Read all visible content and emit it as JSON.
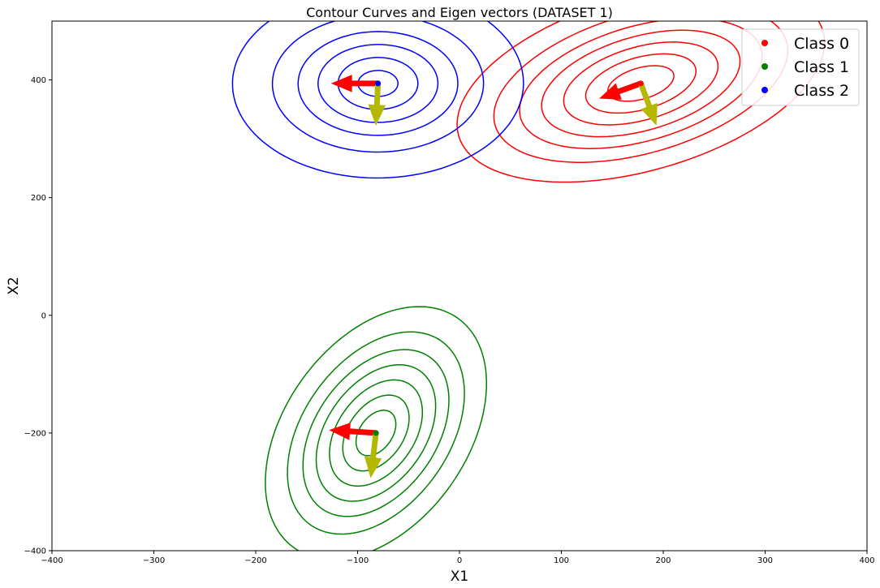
{
  "chart_data": {
    "type": "scatter",
    "title": "Contour Curves and Eigen vectors (DATASET 1)",
    "xlabel": "X1",
    "ylabel": "X2",
    "xlim": [
      -400,
      400
    ],
    "ylim": [
      -400,
      500
    ],
    "xticks": [
      -400,
      -300,
      -200,
      -100,
      0,
      100,
      200,
      300,
      400
    ],
    "yticks": [
      -400,
      -200,
      0,
      200,
      400
    ],
    "legend": {
      "placement": "top-right"
    },
    "eigen_colors": [
      "#ff0000",
      "#b5b800"
    ],
    "series": [
      {
        "name": "Class 0",
        "color": "#ff0000",
        "mean": [
          178,
          394
        ],
        "contours": {
          "count": 7,
          "sigma_major": 83,
          "sigma_minor": 53,
          "angle_deg": 40,
          "levels": [
            0.45,
            0.75,
            1.05,
            1.35,
            1.65,
            2.0,
            2.5
          ]
        },
        "eigen_vectors": [
          {
            "dx": -40,
            "dy": -25
          },
          {
            "dx": 15,
            "dy": -70
          }
        ]
      },
      {
        "name": "Class 1",
        "color": "#008000",
        "mean": [
          -82,
          -200
        ],
        "contours": {
          "count": 7,
          "sigma_major": 88,
          "sigma_minor": 39,
          "angle_deg": 76,
          "levels": [
            0.45,
            0.75,
            1.05,
            1.35,
            1.65,
            2.0,
            2.5
          ]
        },
        "eigen_vectors": [
          {
            "dx": -45,
            "dy": 5
          },
          {
            "dx": -5,
            "dy": -75
          }
        ]
      },
      {
        "name": "Class 2",
        "color": "#0000ff",
        "mean": [
          -80,
          394
        ],
        "contours": {
          "count": 6,
          "sigma_major": 63,
          "sigma_minor": 56,
          "angle_deg": 89,
          "levels": [
            0.35,
            0.7,
            1.05,
            1.4,
            1.85,
            2.55
          ]
        },
        "eigen_vectors": [
          {
            "dx": -45,
            "dy": 0
          },
          {
            "dx": -2,
            "dy": -70
          }
        ]
      }
    ]
  }
}
